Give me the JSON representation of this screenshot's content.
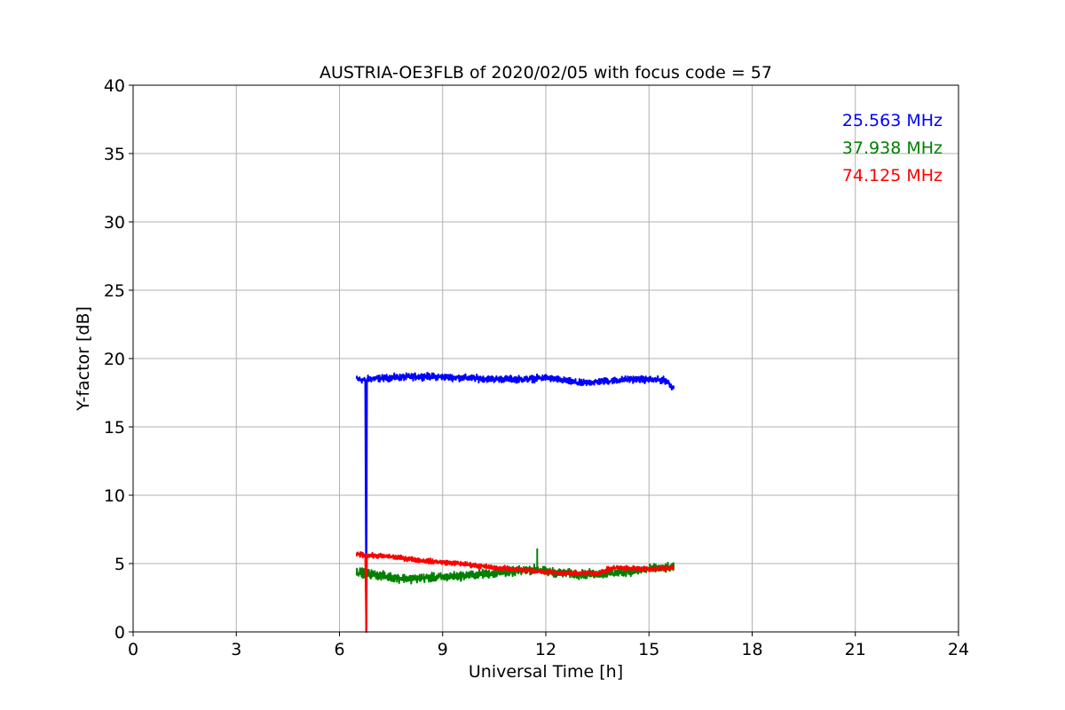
{
  "chart_data": {
    "type": "line",
    "title": "AUSTRIA-OE3FLB of 2020/02/05 with focus code = 57",
    "xlabel": "Universal Time [h]",
    "ylabel": "Y-factor [dB]",
    "xlim": [
      0,
      24
    ],
    "ylim": [
      0,
      40
    ],
    "xticks": [
      0,
      3,
      6,
      9,
      12,
      15,
      18,
      21,
      24
    ],
    "yticks": [
      0,
      5,
      10,
      15,
      20,
      25,
      30,
      35,
      40
    ],
    "grid": true,
    "legend_position": "top-right",
    "series": [
      {
        "name": "25.563 MHz",
        "color": "#0000ff",
        "noise": 0.35,
        "points": [
          [
            6.5,
            18.5
          ],
          [
            6.75,
            18.4
          ],
          [
            6.78,
            0.0
          ],
          [
            6.8,
            18.5
          ],
          [
            7.5,
            18.6
          ],
          [
            8.5,
            18.7
          ],
          [
            9.5,
            18.6
          ],
          [
            10.5,
            18.5
          ],
          [
            11.5,
            18.5
          ],
          [
            12.0,
            18.6
          ],
          [
            12.5,
            18.4
          ],
          [
            13.0,
            18.2
          ],
          [
            13.5,
            18.3
          ],
          [
            14.5,
            18.5
          ],
          [
            15.5,
            18.4
          ],
          [
            15.72,
            17.8
          ]
        ]
      },
      {
        "name": "37.938 MHz",
        "color": "#008000",
        "noise": 0.45,
        "points": [
          [
            6.5,
            4.4
          ],
          [
            7.0,
            4.2
          ],
          [
            7.5,
            4.0
          ],
          [
            8.0,
            3.9
          ],
          [
            9.0,
            4.0
          ],
          [
            10.0,
            4.2
          ],
          [
            11.0,
            4.4
          ],
          [
            11.75,
            4.6
          ],
          [
            12.0,
            4.4
          ],
          [
            13.0,
            4.2
          ],
          [
            14.0,
            4.3
          ],
          [
            15.0,
            4.6
          ],
          [
            15.72,
            4.7
          ]
        ]
      },
      {
        "name": "74.125 MHz",
        "color": "#ff0000",
        "noise": 0.25,
        "points": [
          [
            6.5,
            5.7
          ],
          [
            6.75,
            5.6
          ],
          [
            6.78,
            0.0
          ],
          [
            6.8,
            5.6
          ],
          [
            7.5,
            5.5
          ],
          [
            8.5,
            5.2
          ],
          [
            9.5,
            5.0
          ],
          [
            10.5,
            4.7
          ],
          [
            11.5,
            4.5
          ],
          [
            12.5,
            4.3
          ],
          [
            13.5,
            4.3
          ],
          [
            14.0,
            4.7
          ],
          [
            15.0,
            4.6
          ],
          [
            15.72,
            4.7
          ]
        ]
      }
    ],
    "spikes": [
      {
        "series": "37.938 MHz",
        "x": 11.75,
        "y": 6.1
      }
    ]
  }
}
